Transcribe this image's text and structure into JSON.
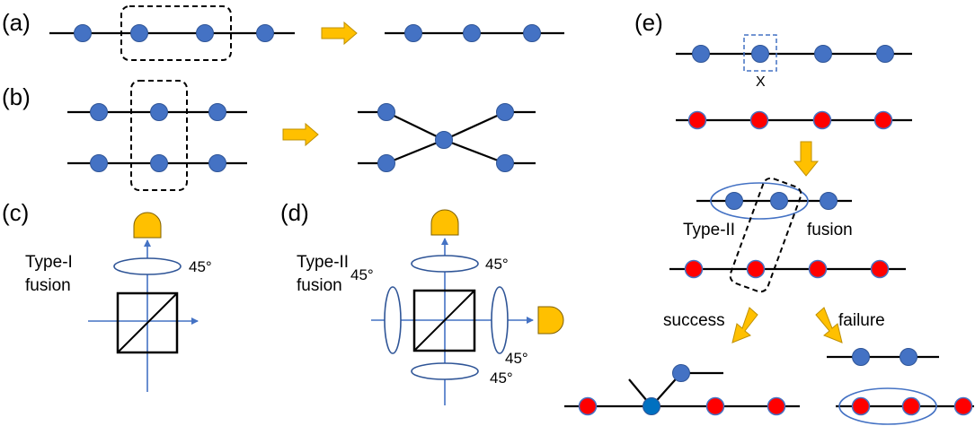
{
  "panels": {
    "a": "(a)",
    "b": "(b)",
    "c": "(c)",
    "d": "(d)",
    "e": "(e)"
  },
  "c": {
    "type_line1": "Type-I",
    "type_line2": "fusion",
    "angle_label": "45°"
  },
  "d": {
    "type_line1": "Type-II",
    "type_line2": "fusion",
    "angle_top": "45°",
    "angle_left": "45°",
    "angle_right": "45°",
    "angle_bottom": "45°"
  },
  "e": {
    "x_label": "X",
    "type_label": "Type-II",
    "fusion_label": "fusion",
    "success_label": "success",
    "failure_label": "failure"
  },
  "colors": {
    "blue_node": "#4472C4",
    "red_node": "#ff0000",
    "arrow": "#FFC000",
    "detector": "#FFC000"
  }
}
